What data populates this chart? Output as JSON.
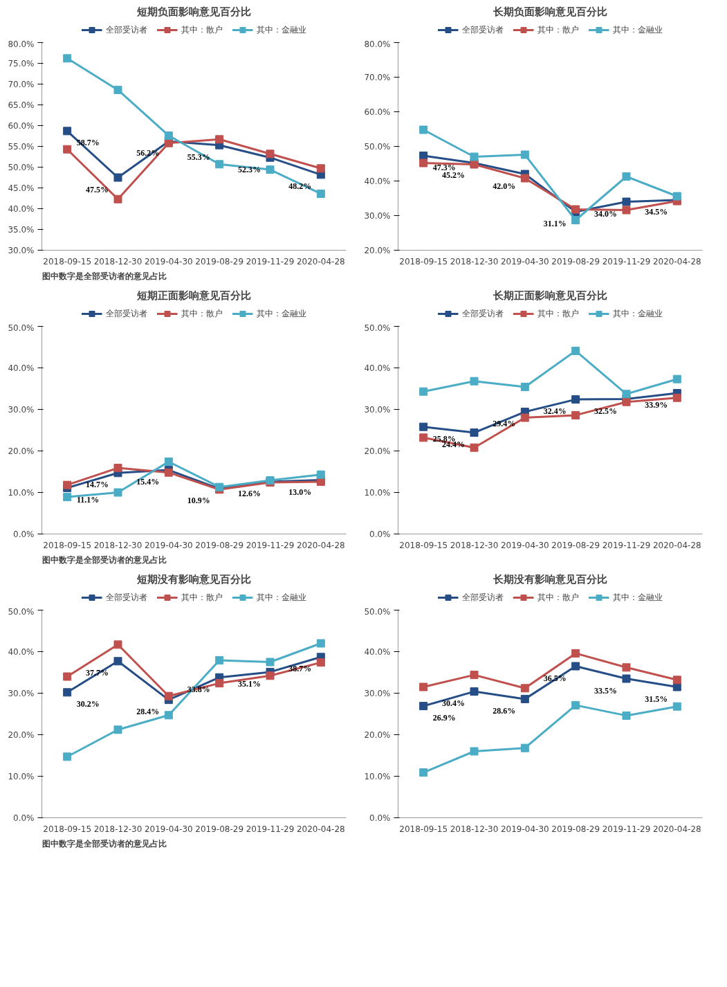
{
  "chart_data": [
    {
      "type": "line",
      "title": "短期负面影响意见百分比",
      "categories": [
        "2018-09-15",
        "2018-12-30",
        "2019-04-30",
        "2019-08-29",
        "2019-11-29",
        "2020-04-28"
      ],
      "ylim": [
        30,
        80
      ],
      "yticks": [
        {
          "value": 30,
          "label": "30.0%"
        },
        {
          "value": 35,
          "label": "35.0%"
        },
        {
          "value": 40,
          "label": "40.0%"
        },
        {
          "value": 45,
          "label": "45.0%"
        },
        {
          "value": 50,
          "label": "50.0%"
        },
        {
          "value": 55,
          "label": "55.0%"
        },
        {
          "value": 60,
          "label": "60.0%"
        },
        {
          "value": 65,
          "label": "65.0%"
        },
        {
          "value": 70,
          "label": "70.0%"
        },
        {
          "value": 75,
          "label": "75.0%"
        },
        {
          "value": 80,
          "label": "80.0%"
        }
      ],
      "legend": "top",
      "marker": "square",
      "annotations": [
        "图中数字是全部受访者的意见占比"
      ],
      "series": [
        {
          "name": "全部受访者",
          "color": "#254d86",
          "values": [
            58.7,
            47.5,
            56.2,
            55.3,
            52.3,
            48.2
          ],
          "value_labels": [
            "58.7%",
            "47.5%",
            "56.2%",
            "55.3%",
            "52.3%",
            "48.2%"
          ]
        },
        {
          "name": "其中：散户",
          "color": "#c0504d",
          "values": [
            54.3,
            42.3,
            55.8,
            56.7,
            53.2,
            49.7
          ]
        },
        {
          "name": "其中：金融业",
          "color": "#4bacc6",
          "values": [
            76.2,
            68.6,
            57.6,
            50.7,
            49.4,
            43.6
          ]
        }
      ]
    },
    {
      "type": "line",
      "title": "长期负面影响意见百分比",
      "categories": [
        "2018-09-15",
        "2018-12-30",
        "2019-04-30",
        "2019-08-29",
        "2019-11-29",
        "2020-04-28"
      ],
      "ylim": [
        20,
        80
      ],
      "yticks": [
        {
          "value": 20,
          "label": "20.0%"
        },
        {
          "value": 30,
          "label": "30.0%"
        },
        {
          "value": 40,
          "label": "40.0%"
        },
        {
          "value": 50,
          "label": "50.0%"
        },
        {
          "value": 60,
          "label": "60.0%"
        },
        {
          "value": 70,
          "label": "70.0%"
        },
        {
          "value": 80,
          "label": "80.0%"
        }
      ],
      "legend": "top",
      "marker": "square",
      "series": [
        {
          "name": "全部受访者",
          "color": "#254d86",
          "values": [
            47.3,
            45.2,
            42.0,
            31.1,
            34.0,
            34.5
          ],
          "value_labels": [
            "47.3%",
            "45.2%",
            "42.0%",
            "31.1%",
            "34.0%",
            "34.5%"
          ]
        },
        {
          "name": "其中：散户",
          "color": "#c0504d",
          "values": [
            45.2,
            44.8,
            40.8,
            31.8,
            31.6,
            34.2
          ]
        },
        {
          "name": "其中：金融业",
          "color": "#4bacc6",
          "values": [
            54.8,
            47.0,
            47.6,
            28.7,
            41.3,
            35.6
          ]
        }
      ]
    },
    {
      "type": "line",
      "title": "短期正面影响意见百分比",
      "categories": [
        "2018-09-15",
        "2018-12-30",
        "2019-04-30",
        "2019-08-29",
        "2019-11-29",
        "2020-04-28"
      ],
      "ylim": [
        0,
        50
      ],
      "yticks": [
        {
          "value": 0,
          "label": "0.0%"
        },
        {
          "value": 10,
          "label": "10.0%"
        },
        {
          "value": 20,
          "label": "20.0%"
        },
        {
          "value": 30,
          "label": "30.0%"
        },
        {
          "value": 40,
          "label": "40.0%"
        },
        {
          "value": 50,
          "label": "50.0%"
        }
      ],
      "legend": "top",
      "marker": "square",
      "annotations": [
        "图中数字是全部受访者的意见占比"
      ],
      "series": [
        {
          "name": "全部受访者",
          "color": "#254d86",
          "values": [
            11.1,
            14.7,
            15.4,
            10.9,
            12.6,
            13.0
          ],
          "value_labels": [
            "11.1%",
            "14.7%",
            "15.4%",
            "10.9%",
            "12.6%",
            "13.0%"
          ]
        },
        {
          "name": "其中：散户",
          "color": "#c0504d",
          "values": [
            11.8,
            15.9,
            14.8,
            10.7,
            12.4,
            12.6
          ]
        },
        {
          "name": "其中：金融业",
          "color": "#4bacc6",
          "values": [
            8.9,
            10.0,
            17.4,
            11.3,
            12.9,
            14.3
          ]
        }
      ]
    },
    {
      "type": "line",
      "title": "长期正面影响意见百分比",
      "categories": [
        "2018-09-15",
        "2018-12-30",
        "2019-04-30",
        "2019-08-29",
        "2019-11-29",
        "2020-04-28"
      ],
      "ylim": [
        0,
        50
      ],
      "yticks": [
        {
          "value": 0,
          "label": "0.0%"
        },
        {
          "value": 10,
          "label": "10.0%"
        },
        {
          "value": 20,
          "label": "20.0%"
        },
        {
          "value": 30,
          "label": "30.0%"
        },
        {
          "value": 40,
          "label": "40.0%"
        },
        {
          "value": 50,
          "label": "50.0%"
        }
      ],
      "legend": "top",
      "marker": "square",
      "series": [
        {
          "name": "全部受访者",
          "color": "#254d86",
          "values": [
            25.8,
            24.4,
            29.4,
            32.4,
            32.5,
            33.9
          ],
          "value_labels": [
            "25.8%",
            "24.4%",
            "29.4%",
            "32.4%",
            "32.5%",
            "33.9%"
          ]
        },
        {
          "name": "其中：散户",
          "color": "#c0504d",
          "values": [
            23.2,
            20.8,
            28.0,
            28.6,
            31.8,
            32.8
          ]
        },
        {
          "name": "其中：金融业",
          "color": "#4bacc6",
          "values": [
            34.3,
            36.8,
            35.4,
            44.1,
            33.7,
            37.3
          ]
        }
      ]
    },
    {
      "type": "line",
      "title": "短期没有影响意见百分比",
      "categories": [
        "2018-09-15",
        "2018-12-30",
        "2019-04-30",
        "2019-08-29",
        "2019-11-29",
        "2020-04-28"
      ],
      "ylim": [
        0,
        50
      ],
      "yticks": [
        {
          "value": 0,
          "label": "0.0%"
        },
        {
          "value": 10,
          "label": "10.0%"
        },
        {
          "value": 20,
          "label": "20.0%"
        },
        {
          "value": 30,
          "label": "30.0%"
        },
        {
          "value": 40,
          "label": "40.0%"
        },
        {
          "value": 50,
          "label": "50.0%"
        }
      ],
      "legend": "top",
      "marker": "square",
      "annotations": [
        "图中数字是全部受访者的意见占比"
      ],
      "series": [
        {
          "name": "全部受访者",
          "color": "#254d86",
          "values": [
            30.2,
            37.7,
            28.4,
            33.8,
            35.1,
            38.7
          ],
          "value_labels": [
            "30.2%",
            "37.7%",
            "28.4%",
            "33.8%",
            "35.1%",
            "38.7%"
          ]
        },
        {
          "name": "其中：散户",
          "color": "#c0504d",
          "values": [
            34.0,
            41.7,
            29.3,
            32.4,
            34.2,
            37.4
          ]
        },
        {
          "name": "其中：金融业",
          "color": "#4bacc6",
          "values": [
            14.7,
            21.2,
            24.7,
            37.9,
            37.5,
            42.0
          ]
        }
      ]
    },
    {
      "type": "line",
      "title": "长期没有影响意见百分比",
      "categories": [
        "2018-09-15",
        "2018-12-30",
        "2019-04-30",
        "2019-08-29",
        "2019-11-29",
        "2020-04-28"
      ],
      "ylim": [
        0,
        50
      ],
      "yticks": [
        {
          "value": 0,
          "label": "0.0%"
        },
        {
          "value": 10,
          "label": "10.0%"
        },
        {
          "value": 20,
          "label": "20.0%"
        },
        {
          "value": 30,
          "label": "30.0%"
        },
        {
          "value": 40,
          "label": "40.0%"
        },
        {
          "value": 50,
          "label": "50.0%"
        }
      ],
      "legend": "top",
      "marker": "square",
      "series": [
        {
          "name": "全部受访者",
          "color": "#254d86",
          "values": [
            26.9,
            30.4,
            28.6,
            36.5,
            33.5,
            31.5
          ],
          "value_labels": [
            "26.9%",
            "30.4%",
            "28.6%",
            "36.5%",
            "33.5%",
            "31.5%"
          ]
        },
        {
          "name": "其中：散户",
          "color": "#c0504d",
          "values": [
            31.5,
            34.4,
            31.2,
            39.6,
            36.2,
            33.2
          ]
        },
        {
          "name": "其中：金融业",
          "color": "#4bacc6",
          "values": [
            10.9,
            16.0,
            16.8,
            27.1,
            24.6,
            26.8
          ]
        }
      ]
    }
  ]
}
